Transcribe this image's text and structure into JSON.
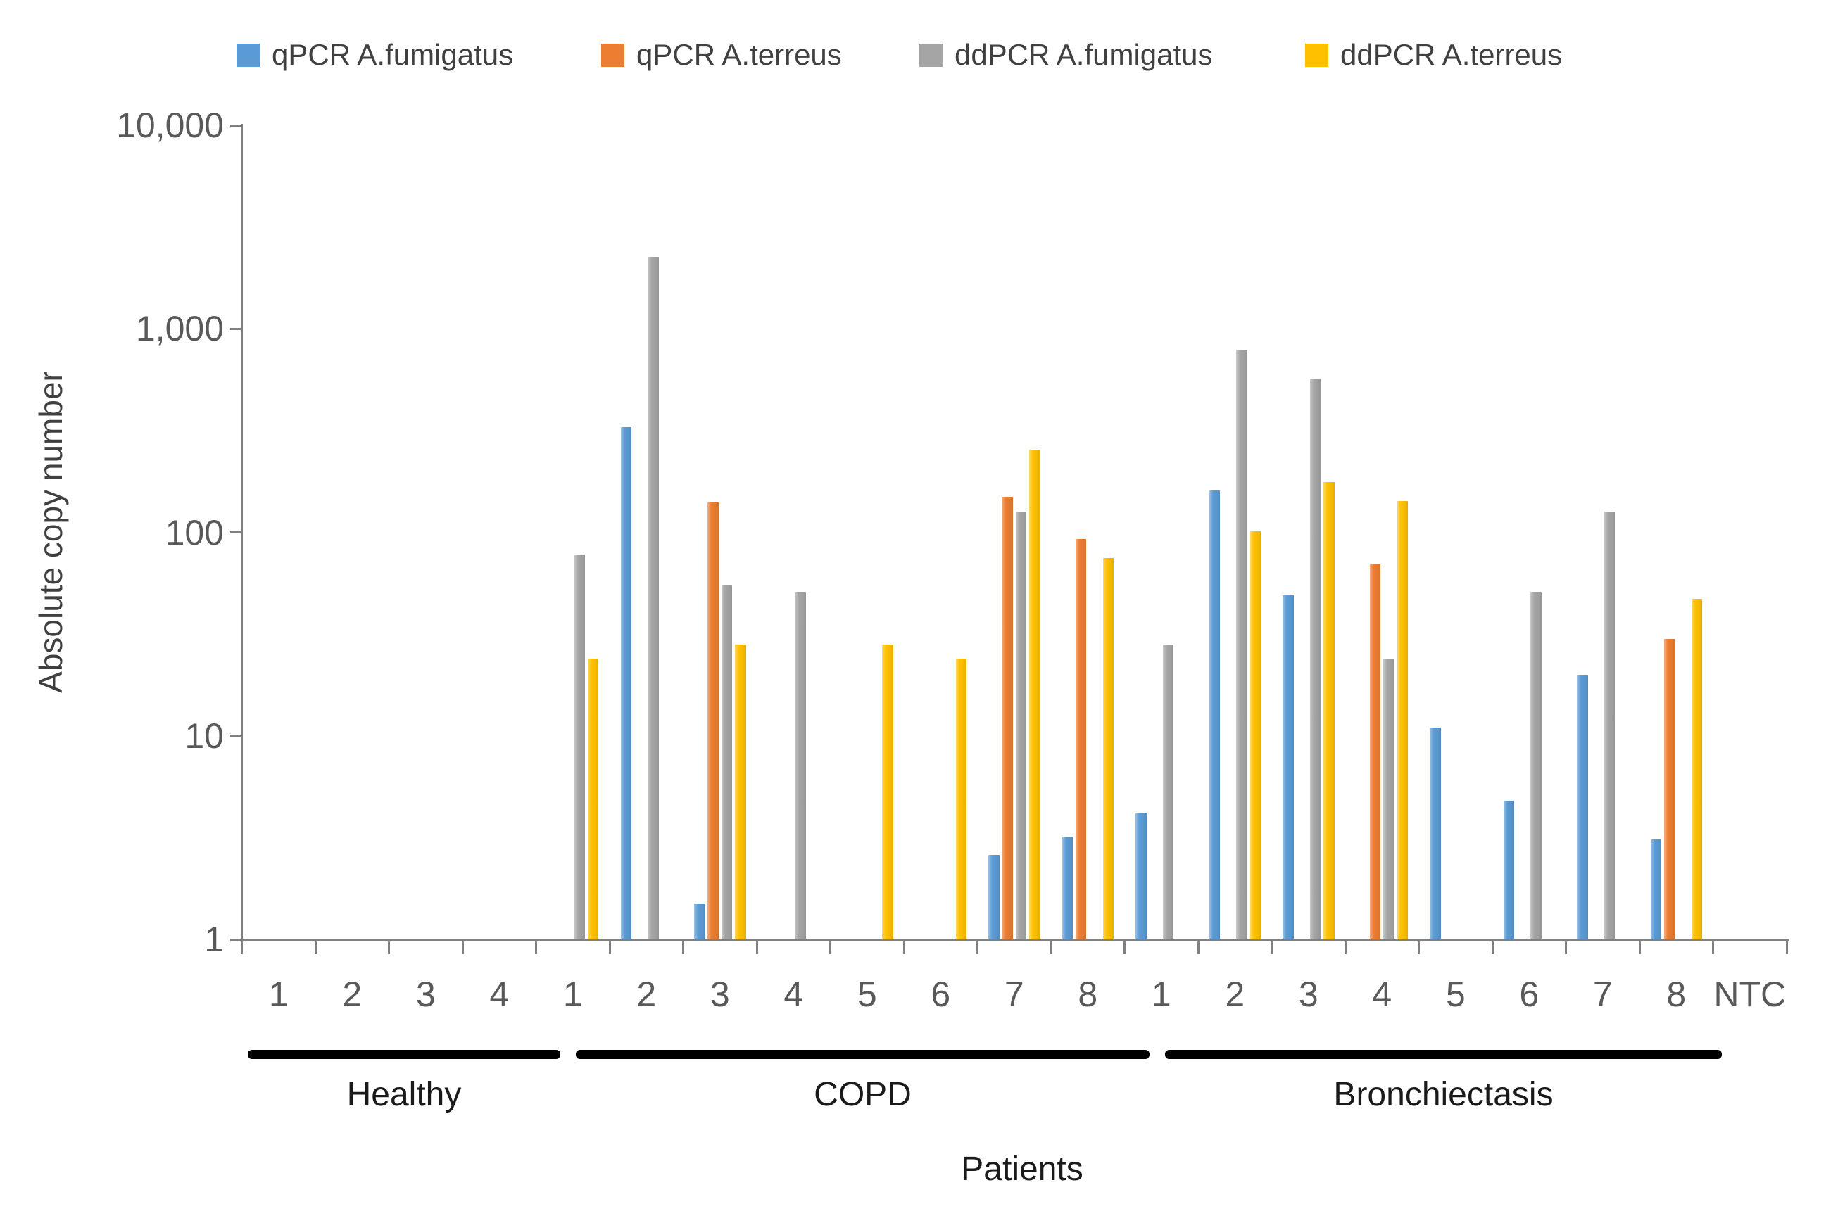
{
  "chart_data": {
    "type": "bar",
    "title": "",
    "ylabel": "Absolute copy number",
    "xlabel": "Patients",
    "y_scale": "log10",
    "ylim": [
      1,
      10000
    ],
    "ytick_labels": [
      "1",
      "10",
      "100",
      "1,000",
      "10,000"
    ],
    "legend_position": "top",
    "gridlines": false,
    "categories": [
      "1",
      "2",
      "3",
      "4",
      "1",
      "2",
      "3",
      "4",
      "5",
      "6",
      "7",
      "8",
      "1",
      "2",
      "3",
      "4",
      "5",
      "6",
      "7",
      "8",
      "NTC"
    ],
    "groups": [
      {
        "label": "Healthy",
        "start": 0,
        "end": 3
      },
      {
        "label": "COPD",
        "start": 4,
        "end": 11
      },
      {
        "label": "Bronchiectasis",
        "start": 12,
        "end": 19
      }
    ],
    "series": [
      {
        "name": "qPCR A.fumigatus",
        "color": "#5B9BD5",
        "values": [
          null,
          null,
          null,
          null,
          null,
          330,
          1.5,
          null,
          null,
          null,
          2.6,
          3.2,
          4.2,
          160,
          49,
          null,
          11,
          4.8,
          20,
          3.1,
          null
        ]
      },
      {
        "name": "qPCR A.terreus",
        "color": "#ED7D31",
        "values": [
          null,
          null,
          null,
          null,
          null,
          null,
          140,
          null,
          null,
          null,
          150,
          93,
          null,
          null,
          null,
          70,
          null,
          null,
          null,
          30,
          null
        ]
      },
      {
        "name": "ddPCR A.fumigatus",
        "color": "#A5A5A5",
        "values": [
          null,
          null,
          null,
          null,
          78,
          2250,
          55,
          51,
          null,
          null,
          126,
          null,
          28,
          790,
          570,
          24,
          null,
          51,
          126,
          null,
          null
        ]
      },
      {
        "name": "ddPCR A.terreus",
        "color": "#FFC000",
        "values": [
          null,
          null,
          null,
          null,
          24,
          null,
          28,
          null,
          28,
          24,
          255,
          75,
          null,
          101,
          177,
          142,
          null,
          null,
          null,
          47,
          null
        ]
      }
    ]
  }
}
